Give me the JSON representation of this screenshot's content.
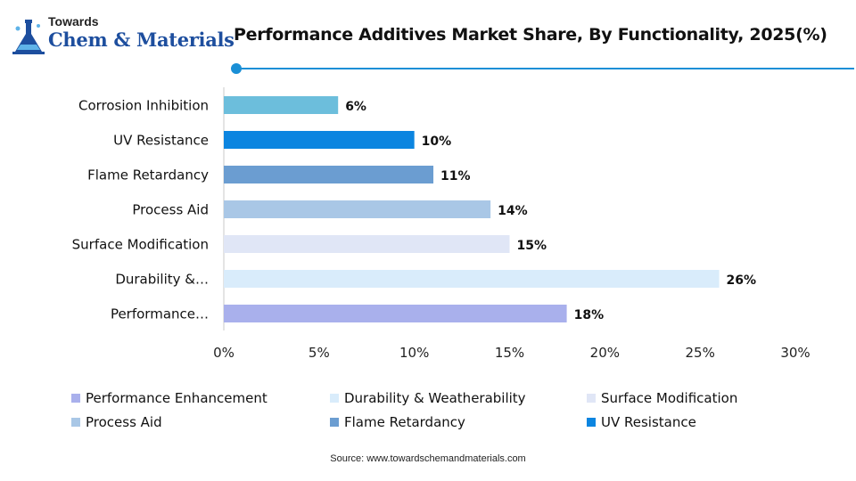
{
  "logo": {
    "line1": "Towards",
    "line2": "Chem & Materials"
  },
  "source": "Source: www.towardschemandmaterials.com",
  "colors": {
    "brand": "#1d4e9e",
    "accent_rule": "#1a8fd6"
  },
  "chart_data": {
    "type": "bar",
    "orientation": "horizontal",
    "title": "Performance Additives Market Share, By Functionality, 2025(%)",
    "categories": [
      "Corrosion Inhibition",
      "UV Resistance",
      "Flame Retardancy",
      "Process Aid",
      "Surface Modification",
      "Durability &…",
      "Performance…"
    ],
    "values": [
      6,
      10,
      11,
      14,
      15,
      26,
      18
    ],
    "data_labels": [
      "6%",
      "10%",
      "11%",
      "14%",
      "15%",
      "26%",
      "18%"
    ],
    "bar_colors": [
      "#6cbedc",
      "#0c85e0",
      "#6b9dd1",
      "#a9c7e6",
      "#e0e6f6",
      "#d9ecfb",
      "#a9b0ec"
    ],
    "xlim": [
      0,
      30
    ],
    "xticks": [
      0,
      5,
      10,
      15,
      20,
      25,
      30
    ],
    "xtick_labels": [
      "0%",
      "5%",
      "10%",
      "15%",
      "20%",
      "25%",
      "30%"
    ],
    "xlabel": "",
    "ylabel": "",
    "grid": false,
    "legend_position": "bottom",
    "legend": [
      {
        "label": "Performance Enhancement",
        "color": "#a9b0ec"
      },
      {
        "label": "Durability & Weatherability",
        "color": "#d9ecfb"
      },
      {
        "label": "Surface Modification",
        "color": "#e0e6f6"
      },
      {
        "label": "Process Aid",
        "color": "#a9c7e6"
      },
      {
        "label": "Flame Retardancy",
        "color": "#6b9dd1"
      },
      {
        "label": "UV Resistance",
        "color": "#0c85e0"
      }
    ]
  }
}
